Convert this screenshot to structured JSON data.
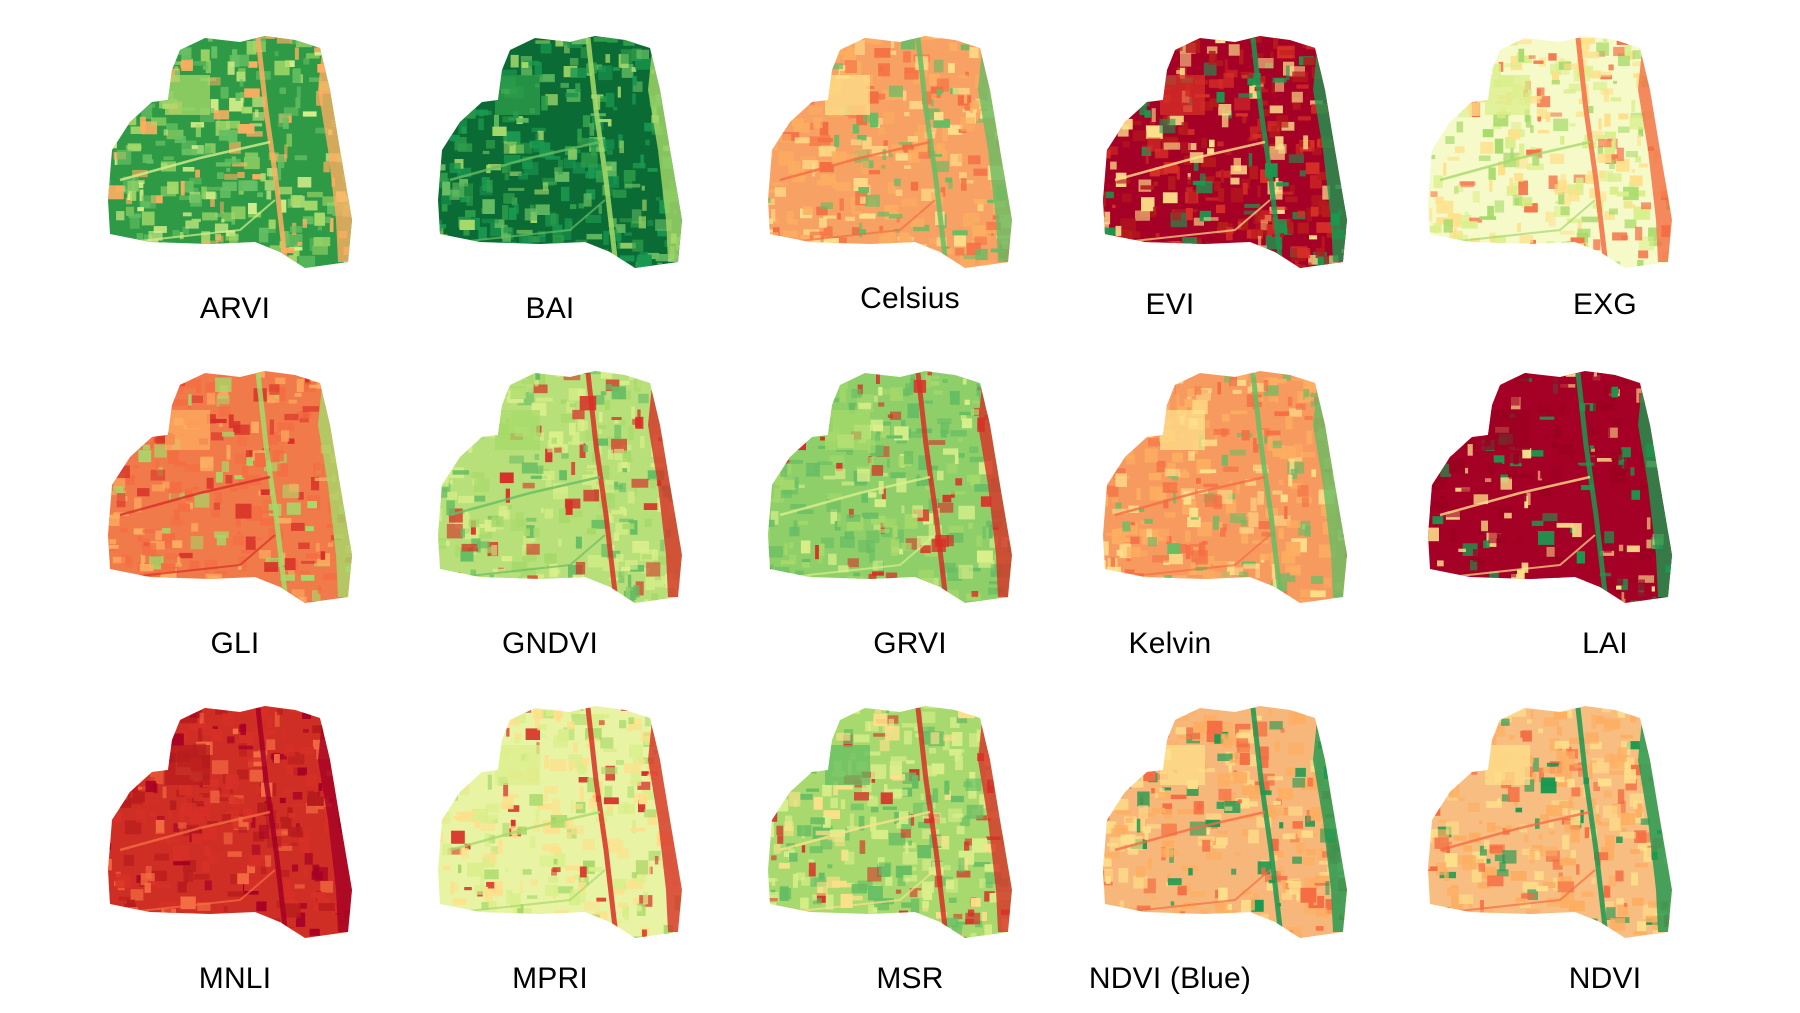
{
  "figure": {
    "panels": [
      {
        "label": "ARVI",
        "palette": [
          "#2e9a45",
          "#66bf63",
          "#a6d96a",
          "#d9ef8b",
          "#fdae61"
        ]
      },
      {
        "label": "BAI",
        "palette": [
          "#0b6b35",
          "#1a9850",
          "#2f9e4a",
          "#66bd63",
          "#a6d96a"
        ]
      },
      {
        "label": "Celsius",
        "palette": [
          "#f7a165",
          "#fdae61",
          "#fee08b",
          "#f46d43",
          "#66bd63"
        ]
      },
      {
        "label": "EVI",
        "palette": [
          "#a50026",
          "#b71c1c",
          "#d73027",
          "#fee08b",
          "#1a9850"
        ]
      },
      {
        "label": "EXG",
        "palette": [
          "#f6f9c8",
          "#fee08b",
          "#d9ef8b",
          "#a6d96a",
          "#f46d43"
        ]
      },
      {
        "label": "GLI",
        "palette": [
          "#f07a4a",
          "#f46d43",
          "#fdae61",
          "#d73027",
          "#a6d96a"
        ]
      },
      {
        "label": "GNDVI",
        "palette": [
          "#b8e07a",
          "#d9ef8b",
          "#a6d96a",
          "#66bd63",
          "#d73027"
        ]
      },
      {
        "label": "GRVI",
        "palette": [
          "#8fcf6a",
          "#66bd63",
          "#a6d96a",
          "#d9ef8b",
          "#d73027"
        ]
      },
      {
        "label": "Kelvin",
        "palette": [
          "#f79a60",
          "#fdae61",
          "#fee08b",
          "#f46d43",
          "#66bd63"
        ]
      },
      {
        "label": "LAI",
        "palette": [
          "#a50026",
          "#a50026",
          "#9b0020",
          "#fee08b",
          "#1a9850"
        ]
      },
      {
        "label": "MNLI",
        "palette": [
          "#cf2e24",
          "#d73027",
          "#b71c1c",
          "#f46d43",
          "#a50026"
        ]
      },
      {
        "label": "MPRI",
        "palette": [
          "#e9f3a4",
          "#fee08b",
          "#d9ef8b",
          "#a6d96a",
          "#d73027"
        ]
      },
      {
        "label": "MSR",
        "palette": [
          "#a8d96e",
          "#d9ef8b",
          "#66bd63",
          "#fee08b",
          "#d73027"
        ]
      },
      {
        "label": "NDVI (Blue)",
        "palette": [
          "#f8b77a",
          "#fdae61",
          "#fee08b",
          "#f46d43",
          "#1a9850"
        ]
      },
      {
        "label": "NDVI",
        "palette": [
          "#f8bd80",
          "#fdae61",
          "#fee08b",
          "#f46d43",
          "#1a9850"
        ]
      }
    ]
  }
}
